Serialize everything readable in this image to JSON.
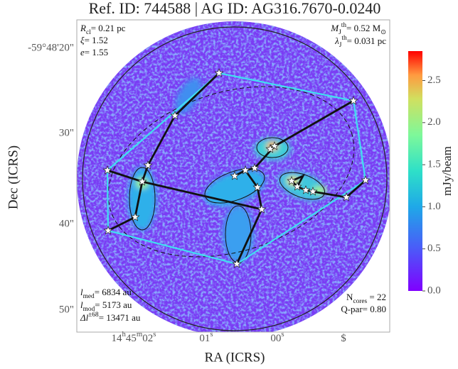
{
  "chart_data": {
    "type": "image",
    "title": "Ref. ID: 744588 | AG ID: AG316.7670-0.0240",
    "xlabel": "RA (ICRS)",
    "ylabel": "Dec (ICRS)",
    "xtick_labels": [
      [
        "14",
        "h",
        "45",
        "m",
        "02",
        "s"
      ],
      [
        "01",
        "s"
      ],
      [
        "00",
        "s"
      ],
      [
        "$"
      ]
    ],
    "ytick_labels": [
      "-59°48'20\"",
      "30\"",
      "40\"",
      "50\""
    ],
    "colorbar": {
      "label": "mJy/beam",
      "clim": [
        0,
        2.85
      ],
      "ticks": [
        {
          "value": 0,
          "label": "0.0"
        },
        {
          "value": 0.5,
          "label": "0.5"
        },
        {
          "value": 1,
          "label": "1.0"
        },
        {
          "value": 1.5,
          "label": "1.5"
        },
        {
          "value": 2,
          "label": "2.0"
        },
        {
          "value": 2.5,
          "label": "2.5"
        }
      ]
    },
    "annotations": [
      {
        "corner": "top-left",
        "lines": [
          [
            {
              "text": "R",
              "style": "italic"
            },
            {
              "text": "cl",
              "style": "sub"
            },
            {
              "text": "= 0.21 pc",
              "style": "normal"
            }
          ],
          [
            {
              "text": "ξ",
              "style": "italic"
            },
            {
              "text": "= 1.52",
              "style": "normal"
            }
          ],
          [
            {
              "text": "e",
              "style": "italic"
            },
            {
              "text": "= 1.55",
              "style": "normal"
            }
          ]
        ]
      },
      {
        "corner": "top-right",
        "lines": [
          [
            {
              "text": "M",
              "style": "italic"
            },
            {
              "text": "J",
              "style": "sub"
            },
            {
              "text": "th",
              "style": "sup"
            },
            {
              "text": "= 0.52 M",
              "style": "normal"
            },
            {
              "text": "⊙",
              "style": "sub"
            }
          ],
          [
            {
              "text": "λ",
              "style": "italic"
            },
            {
              "text": "J",
              "style": "sub"
            },
            {
              "text": "th",
              "style": "sup"
            },
            {
              "text": "= 0.031 pc",
              "style": "normal"
            }
          ]
        ]
      },
      {
        "corner": "bottom-left",
        "lines": [
          [
            {
              "text": "l",
              "style": "italic"
            },
            {
              "text": "med",
              "style": "sub"
            },
            {
              "text": "= 6834 au",
              "style": "normal"
            }
          ],
          [
            {
              "text": "l",
              "style": "italic"
            },
            {
              "text": "mod",
              "style": "sub"
            },
            {
              "text": "= 5173 au",
              "style": "normal"
            }
          ],
          [
            {
              "text": "Δl",
              "style": "italic"
            },
            {
              "text": "±68",
              "style": "sup"
            },
            {
              "text": "= 13471 au",
              "style": "normal"
            }
          ]
        ]
      },
      {
        "corner": "bottom-right",
        "lines": [
          [
            {
              "text": "N",
              "style": "normal"
            },
            {
              "text": "cores",
              "style": "sub"
            },
            {
              "text": " = 22",
              "style": "normal"
            }
          ],
          [
            {
              "text": "Q-par= 0.80",
              "style": "normal"
            }
          ]
        ]
      }
    ]
  }
}
